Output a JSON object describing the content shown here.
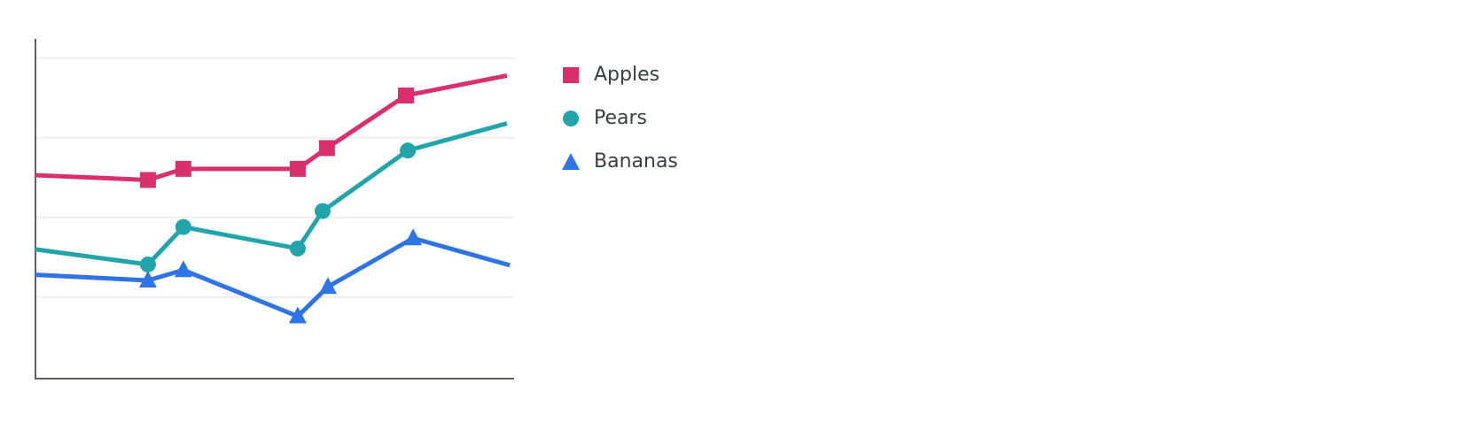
{
  "chart_data": {
    "type": "line",
    "title": "",
    "xlabel": "",
    "ylabel": "",
    "xlim": [
      0,
      100
    ],
    "ylim": [
      0,
      4.24
    ],
    "grid": true,
    "gridlines_y": [
      1,
      2,
      3,
      4
    ],
    "legend_placement": "right",
    "series": [
      {
        "name": "Apples",
        "color": "#d9306b",
        "marker": "square",
        "x": [
          0,
          23.5,
          30.9,
          54.8,
          60.9,
          77.4,
          98.5
        ],
        "y": [
          2.53,
          2.47,
          2.61,
          2.61,
          2.87,
          3.53,
          3.78
        ]
      },
      {
        "name": "Pears",
        "color": "#22a5aa",
        "marker": "circle",
        "x": [
          0,
          23.5,
          30.9,
          54.8,
          60.0,
          77.8,
          98.5
        ],
        "y": [
          1.6,
          1.41,
          1.88,
          1.61,
          2.08,
          2.84,
          3.18
        ]
      },
      {
        "name": "Bananas",
        "color": "#2e74e6",
        "marker": "triangle",
        "x": [
          0,
          23.5,
          30.9,
          54.8,
          61.1,
          78.9,
          99.1
        ],
        "y": [
          1.28,
          1.21,
          1.34,
          0.76,
          1.13,
          1.74,
          1.4
        ]
      }
    ]
  }
}
